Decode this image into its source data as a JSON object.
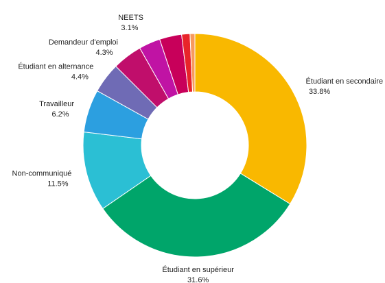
{
  "chart_data": {
    "type": "donut",
    "categories": [
      "Étudiant en secondaire",
      "Étudiant en supérieur",
      "Non-communiqué",
      "Travailleur",
      "Étudiant en alternance",
      "Demandeur d'emploi",
      "NEETS",
      null,
      null,
      null
    ],
    "values": [
      33.8,
      31.6,
      11.5,
      6.2,
      4.4,
      4.3,
      3.1,
      3.2,
      1.2,
      0.7
    ],
    "value_labels": [
      "33.8%",
      "31.6%",
      "11.5%",
      "6.2%",
      "4.4%",
      "4.3%",
      "3.1%",
      null,
      null,
      null
    ],
    "colors": [
      "#f9b800",
      "#00a56a",
      "#2bbfd4",
      "#2c9fe0",
      "#6f6bb5",
      "#c00e6b",
      "#c013a4",
      "#c8005a",
      "#e8242a",
      "#f79a5e"
    ]
  }
}
